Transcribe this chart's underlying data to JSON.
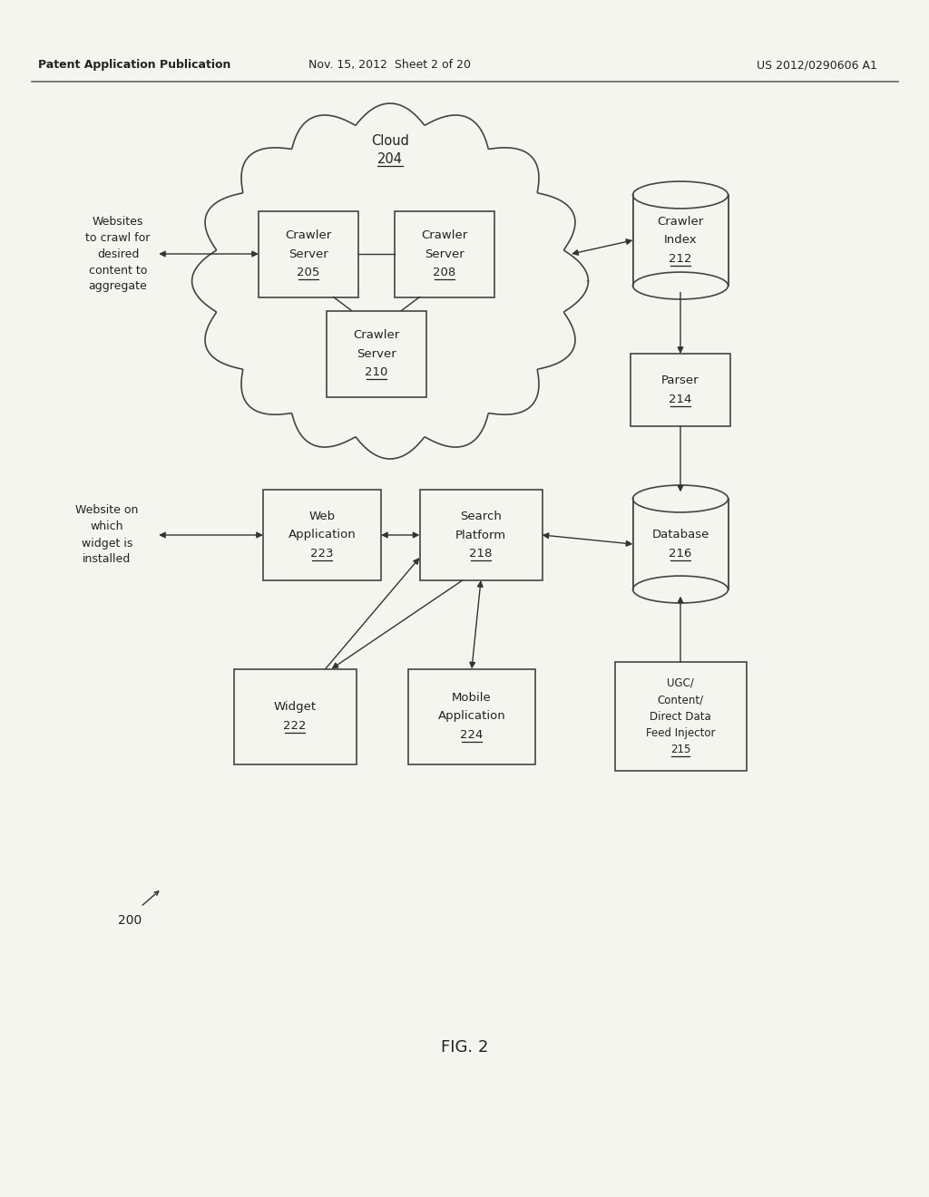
{
  "header_left": "Patent Application Publication",
  "header_mid": "Nov. 15, 2012  Sheet 2 of 20",
  "header_right": "US 2012/0290606 A1",
  "fig_label": "FIG. 2",
  "fig_num": "200",
  "bg_color": "#f5f5f0",
  "box_color": "#f5f5f0",
  "box_edge": "#444444",
  "text_color": "#222222",
  "arrow_color": "#333333"
}
